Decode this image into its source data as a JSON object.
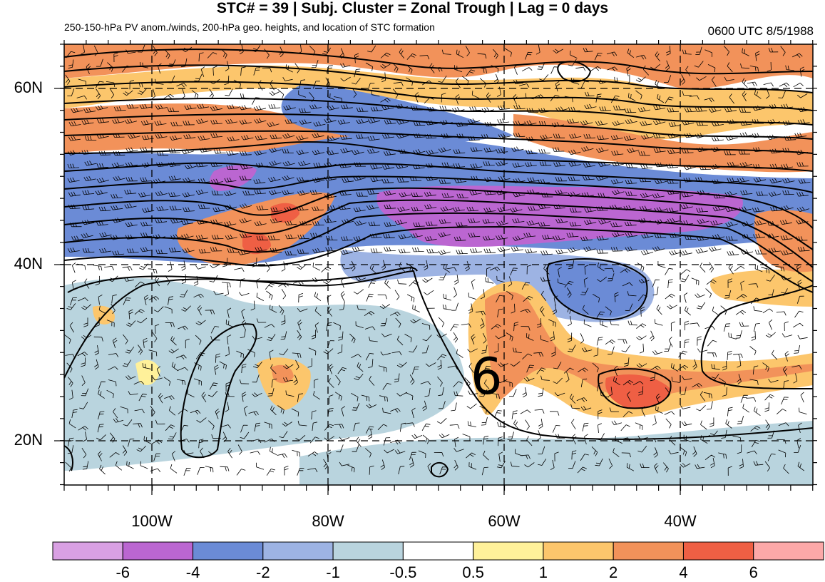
{
  "header": {
    "title": "STC# = 39 | Subj. Cluster = Zonal Trough | Lag = 0 days",
    "subtitle": "250-150-hPa PV anom./winds, 200-hPa geo. heights, and location of STC formation",
    "timestamp": "0600 UTC  8/5/1988"
  },
  "map": {
    "lat_labels": [
      "60N",
      "40N",
      "20N"
    ],
    "lon_labels": [
      "100W",
      "80W",
      "60W",
      "40W"
    ],
    "stc_marker": "6"
  },
  "colorbar": {
    "colors": [
      "#d9a0e3",
      "#bb66d1",
      "#6b8bd6",
      "#9db3e3",
      "#b9d4de",
      "#ffffff",
      "#fff19a",
      "#fcc66c",
      "#f2925a",
      "#ef5f44",
      "#fca8a8"
    ],
    "labels": [
      "-6",
      "-4",
      "-2",
      "-1",
      "-0.5",
      "0.5",
      "1",
      "2",
      "4",
      "6"
    ]
  }
}
